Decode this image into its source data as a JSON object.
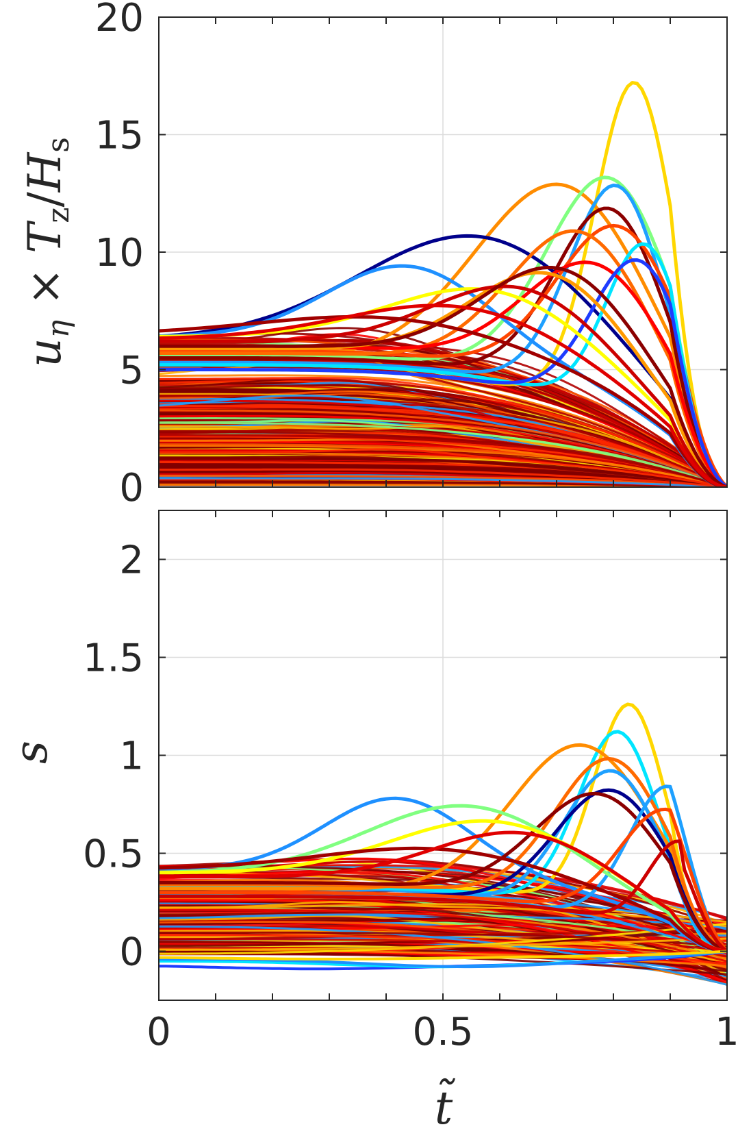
{
  "chart_data": [
    {
      "type": "line",
      "panel": "top",
      "ylabel_parts": [
        "u",
        "η",
        " × ",
        "T",
        "z",
        "/",
        "H",
        "s"
      ],
      "xlim": [
        0,
        1
      ],
      "ylim": [
        0,
        20
      ],
      "yticks": [
        0,
        5,
        10,
        15,
        20
      ],
      "xticks": [
        0,
        0.5,
        1
      ],
      "grid": true,
      "note_on_series": "hundreds of curves colored by a jet colormap; representative curves listed",
      "series": [
        {
          "color": "#ffd700",
          "peak_t": 0.84,
          "peak": 17.2,
          "start": 5.0,
          "width": 0.1
        },
        {
          "color": "#ff8c00",
          "peak_t": 0.72,
          "peak": 12.8,
          "start": 5.5,
          "width": 0.22
        },
        {
          "color": "#80ff80",
          "peak_t": 0.8,
          "peak": 13.1,
          "start": 5.6,
          "width": 0.16
        },
        {
          "color": "#1ea0ff",
          "peak_t": 0.81,
          "peak": 12.8,
          "start": 5.3,
          "width": 0.12
        },
        {
          "color": "#8b0000",
          "peak_t": 0.8,
          "peak": 11.8,
          "start": 5.5,
          "width": 0.14
        },
        {
          "color": "#ff4500",
          "peak_t": 0.82,
          "peak": 11.0,
          "start": 5.8,
          "width": 0.16
        },
        {
          "color": "#00008b",
          "peak_t": 0.58,
          "peak": 10.6,
          "start": 6.3,
          "width": 0.3
        },
        {
          "color": "#1e90ff",
          "peak_t": 0.44,
          "peak": 9.4,
          "start": 6.4,
          "width": 0.2
        },
        {
          "color": "#00e5ff",
          "peak_t": 0.86,
          "peak": 10.3,
          "start": 5.2,
          "width": 0.1
        },
        {
          "color": "#ff6a00",
          "peak_t": 0.75,
          "peak": 10.8,
          "start": 5.7,
          "width": 0.18
        },
        {
          "color": "#ff0000",
          "peak_t": 0.78,
          "peak": 9.4,
          "start": 6.0,
          "width": 0.18
        },
        {
          "color": "#1e3cff",
          "peak_t": 0.85,
          "peak": 9.6,
          "start": 5.0,
          "width": 0.12
        },
        {
          "color": "#ffff00",
          "peak_t": 0.6,
          "peak": 8.3,
          "start": 6.4,
          "width": 0.25
        },
        {
          "color": "#ff9900",
          "peak_t": 0.7,
          "peak": 9.0,
          "start": 5.9,
          "width": 0.2
        },
        {
          "color": "#cc0000",
          "peak_t": 0.65,
          "peak": 8.4,
          "start": 6.2,
          "width": 0.22
        },
        {
          "color": "#8b0000",
          "peak_t": 0.72,
          "peak": 9.2,
          "start": 6.0,
          "width": 0.2
        },
        {
          "color": "#a00000",
          "peak_t": 0.4,
          "peak": 7.2,
          "start": 6.5,
          "width": 0.3
        },
        {
          "color": "#e00000",
          "peak_t": 0.55,
          "peak": 7.6,
          "start": 6.3,
          "width": 0.28
        }
      ]
    },
    {
      "type": "line",
      "panel": "bottom",
      "ylabel": "s",
      "xlabel": "t̃",
      "xlim": [
        0,
        1
      ],
      "ylim": [
        -0.25,
        2.25
      ],
      "yticks": [
        0,
        0.5,
        1,
        1.5,
        2
      ],
      "xticks": [
        0,
        0.5,
        1
      ],
      "grid": true,
      "note_on_series": "hundreds of curves colored by a jet colormap; representative curves listed",
      "series": [
        {
          "color": "#ffd700",
          "peak_t": 0.83,
          "peak": 1.26,
          "start": 0.35,
          "width": 0.09
        },
        {
          "color": "#00e5ff",
          "peak_t": 0.81,
          "peak": 1.12,
          "start": 0.33,
          "width": 0.1
        },
        {
          "color": "#ff8c00",
          "peak_t": 0.75,
          "peak": 1.05,
          "start": 0.32,
          "width": 0.18
        },
        {
          "color": "#ff6a00",
          "peak_t": 0.8,
          "peak": 0.98,
          "start": 0.34,
          "width": 0.14
        },
        {
          "color": "#1ea0ff",
          "peak_t": 0.8,
          "peak": 0.92,
          "start": 0.3,
          "width": 0.12
        },
        {
          "color": "#1e90ff",
          "peak_t": 0.42,
          "peak": 0.78,
          "start": 0.42,
          "width": 0.18
        },
        {
          "color": "#00008b",
          "peak_t": 0.8,
          "peak": 0.82,
          "start": 0.3,
          "width": 0.14
        },
        {
          "color": "#8b0000",
          "peak_t": 0.78,
          "peak": 0.8,
          "start": 0.35,
          "width": 0.16
        },
        {
          "color": "#1ea0ff",
          "peak_t": 0.9,
          "peak": 0.84,
          "start": 0.28,
          "width": 0.1
        },
        {
          "color": "#80ff80",
          "peak_t": 0.55,
          "peak": 0.74,
          "start": 0.4,
          "width": 0.25
        },
        {
          "color": "#ff4500",
          "peak_t": 0.9,
          "peak": 0.72,
          "start": 0.3,
          "width": 0.12
        },
        {
          "color": "#ffff00",
          "peak_t": 0.6,
          "peak": 0.66,
          "start": 0.4,
          "width": 0.25
        },
        {
          "color": "#cc0000",
          "peak_t": 0.92,
          "peak": 0.56,
          "start": 0.28,
          "width": 0.08
        },
        {
          "color": "#a00000",
          "peak_t": 0.5,
          "peak": 0.52,
          "start": 0.42,
          "width": 0.28
        },
        {
          "color": "#e00000",
          "peak_t": 0.65,
          "peak": 0.6,
          "start": 0.38,
          "width": 0.22
        }
      ],
      "negative_series": [
        {
          "color": "#1e3cff",
          "min_t": 0.28,
          "min": -0.09,
          "start": -0.07
        },
        {
          "color": "#00e5ff",
          "min_t": 0.5,
          "min": -0.08,
          "start": -0.05
        },
        {
          "color": "#1e90ff",
          "min_t": 0.55,
          "min": -0.08,
          "start": -0.04
        },
        {
          "color": "#ffd700",
          "min_t": 0.3,
          "min": -0.04,
          "start": -0.03
        }
      ]
    }
  ]
}
